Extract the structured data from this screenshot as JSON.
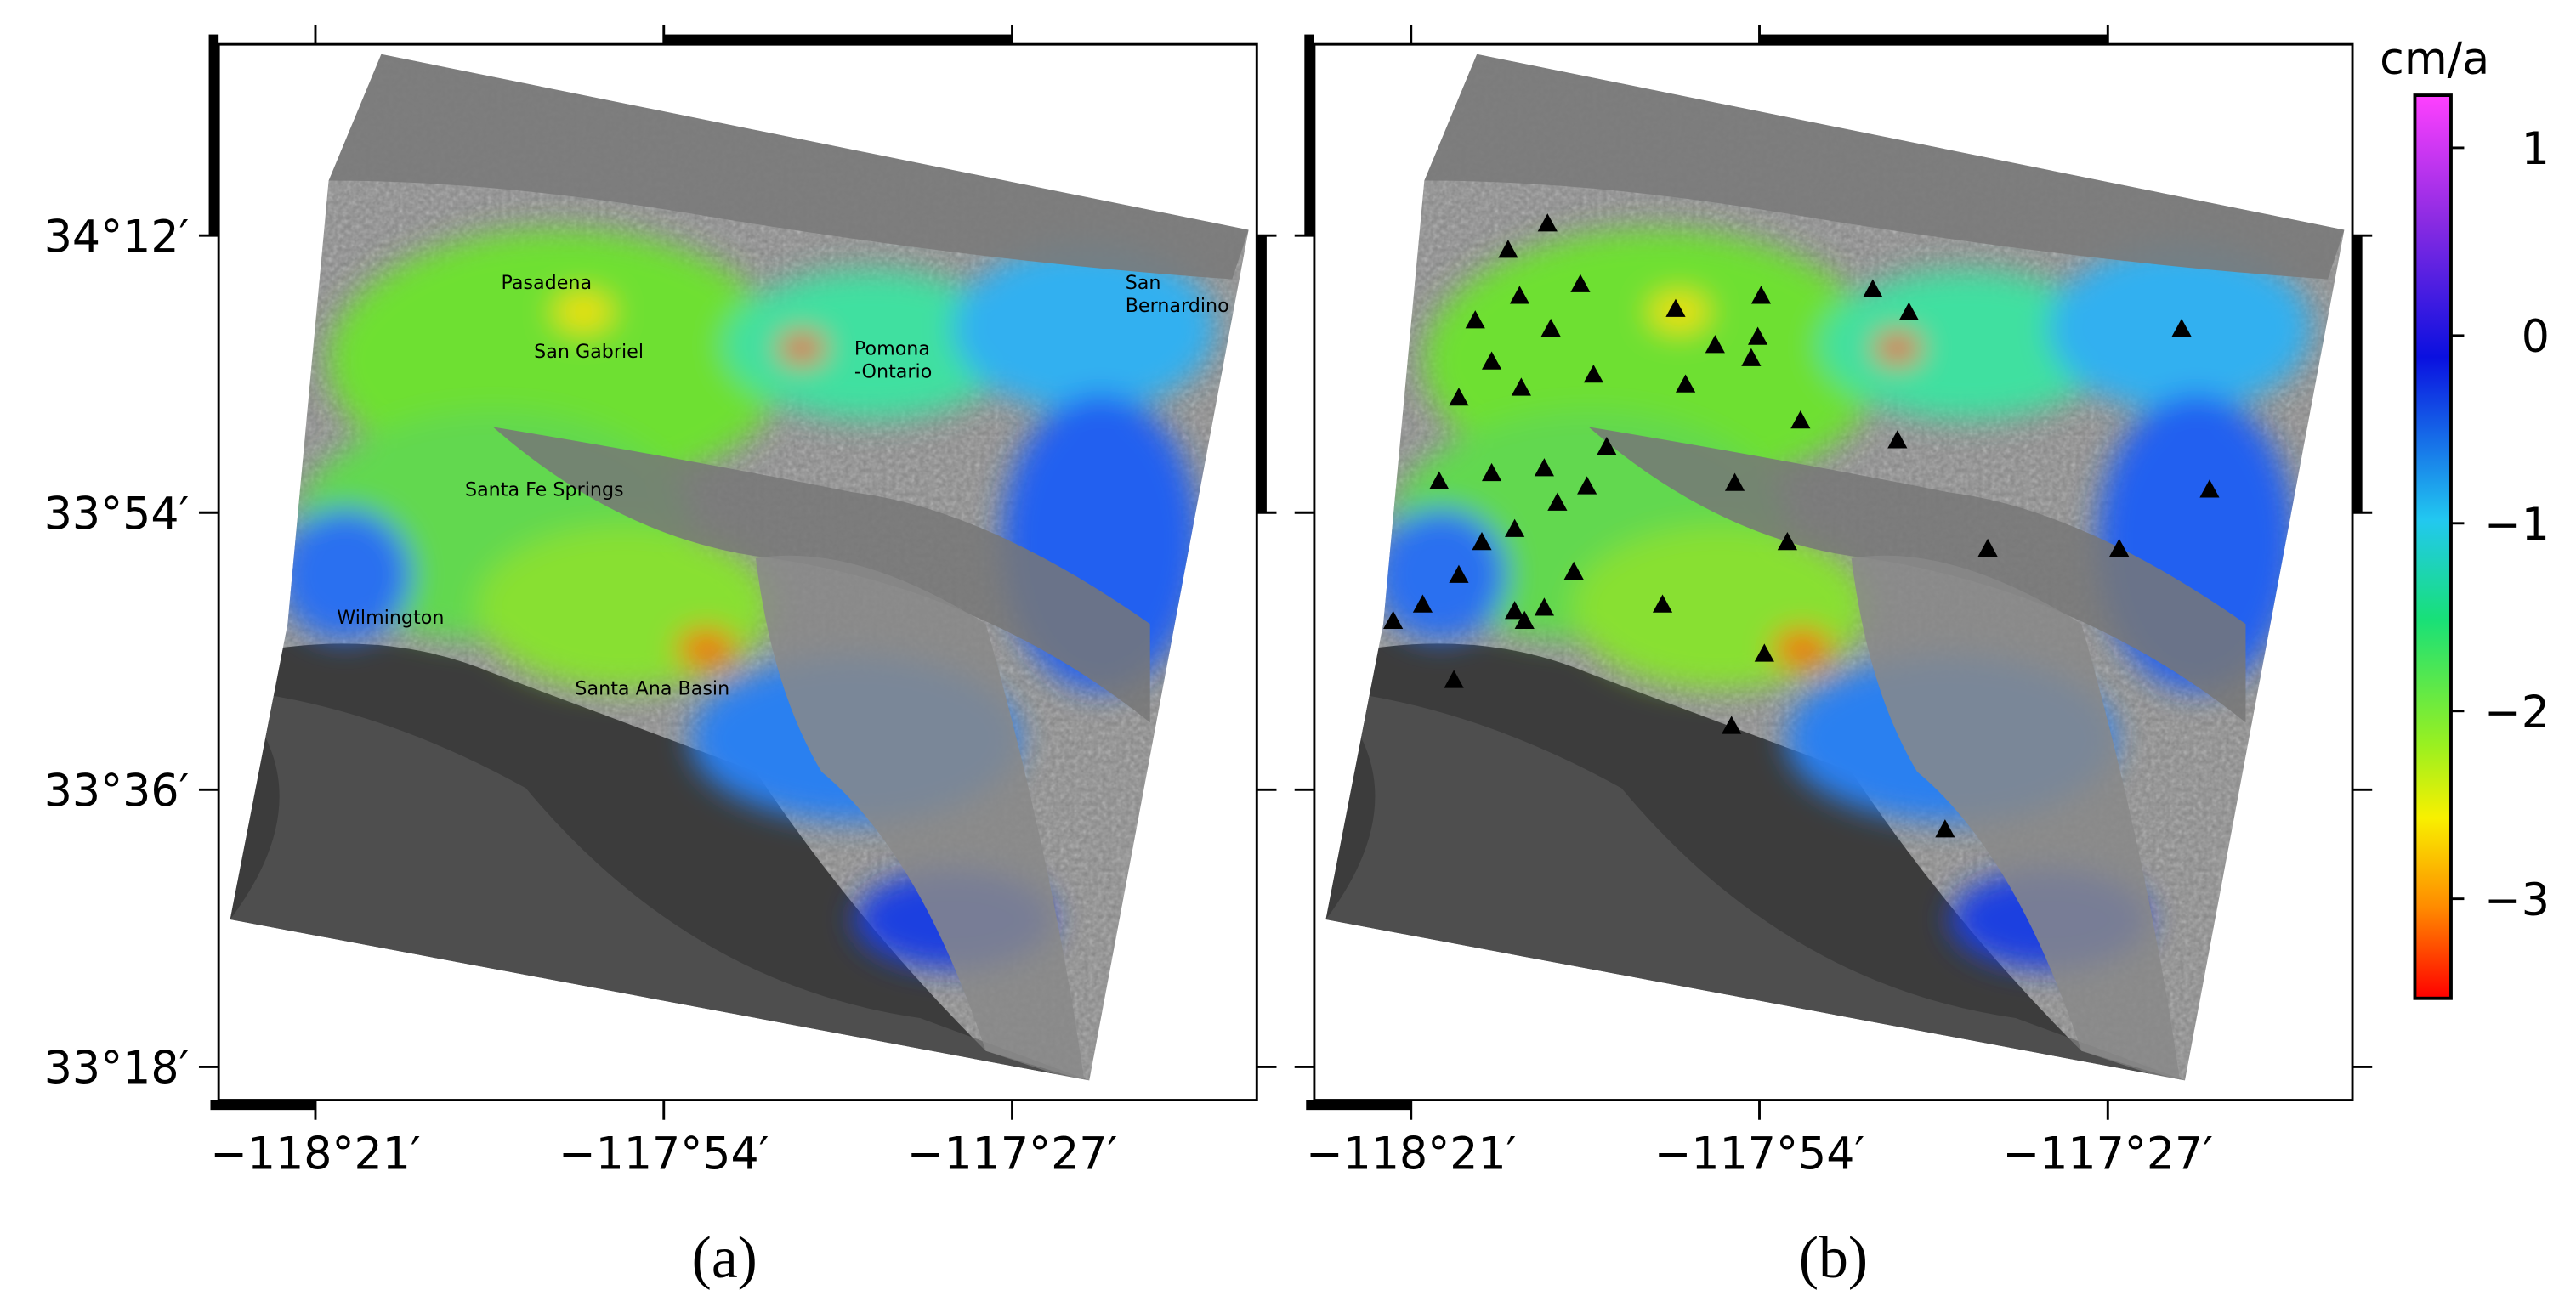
{
  "maps": [
    {
      "label": "(a)",
      "cities": [
        "Pasadena",
        "San Gabriel",
        "Pomona\n-Ontario",
        "San\nBernardino",
        "Santa Fe Springs",
        "Wilmington",
        "Santa Ana Basin"
      ]
    },
    {
      "label": "(b)"
    }
  ],
  "xlim": [
    -118.475,
    -117.134
  ],
  "xticks": [
    {
      "value": -118.35,
      "label": "−118°21′"
    },
    {
      "value": -117.9,
      "label": "−117°54′"
    },
    {
      "value": -117.45,
      "label": "−117°27′"
    }
  ],
  "ylim": [
    33.264,
    34.407
  ],
  "yticks": [
    {
      "value": 34.2,
      "label": "34°12′"
    },
    {
      "value": 33.9,
      "label": "33°54′"
    },
    {
      "value": 33.6,
      "label": "33°36′"
    },
    {
      "value": 33.3,
      "label": "33°18′"
    }
  ],
  "colorbar": {
    "unit": "cm/a",
    "lim": [
      -3.53,
      1.28
    ],
    "ticks": [
      1,
      0,
      {
        "value": -1,
        "label": "−1"
      },
      {
        "value": -2,
        "label": "−2"
      },
      {
        "value": -3,
        "label": "−3"
      }
    ]
  }
}
